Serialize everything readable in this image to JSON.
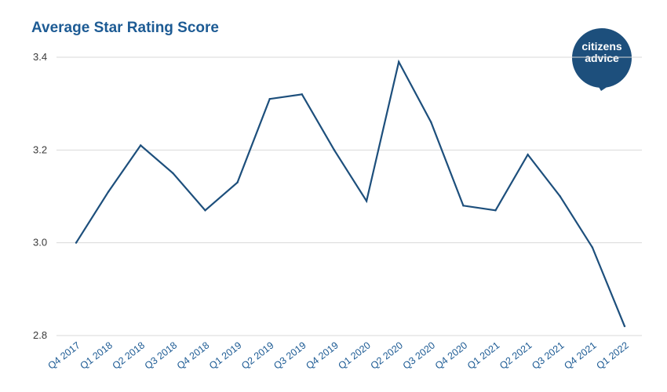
{
  "title": "Average Star Rating Score",
  "logo": {
    "line1": "citizens",
    "line2": "advice",
    "color": "#1d4f7c"
  },
  "colors": {
    "line": "#1d4f7c",
    "title": "#1d5b94",
    "grid": "#d9d9d9",
    "xtick": "#1d5b94"
  },
  "chart_data": {
    "type": "line",
    "title": "Average Star Rating Score",
    "xlabel": "",
    "ylabel": "",
    "ylim": [
      2.8,
      3.4
    ],
    "yticks": [
      "3.4",
      "3.2",
      "3.0",
      "2.8"
    ],
    "grid": true,
    "categories": [
      "Q4 2017",
      "Q1 2018",
      "Q2 2018",
      "Q3 2018",
      "Q4 2018",
      "Q1 2019",
      "Q2 2019",
      "Q3 2019",
      "Q4 2019",
      "Q1 2020",
      "Q2 2020",
      "Q3 2020",
      "Q4 2020",
      "Q1 2021",
      "Q2 2021",
      "Q3 2021",
      "Q4 2021",
      "Q1 2022"
    ],
    "series": [
      {
        "values": [
          3.0,
          3.11,
          3.21,
          3.15,
          3.07,
          3.13,
          3.31,
          3.32,
          3.2,
          3.09,
          3.39,
          3.26,
          3.08,
          3.07,
          3.19,
          3.1,
          2.99,
          2.82
        ]
      }
    ]
  }
}
